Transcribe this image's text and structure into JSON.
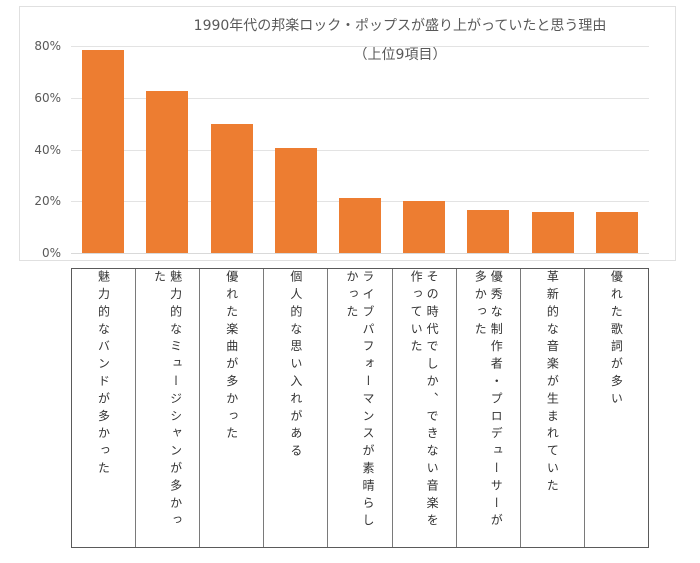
{
  "chart_data": {
    "type": "bar",
    "title": "1990年代の邦楽ロック・ポップスが盛り上がっていたと思う理由",
    "subtitle": "（上位9項目）",
    "xlabel": "",
    "ylabel": "",
    "ylim": [
      0,
      80
    ],
    "yticks": [
      "0%",
      "20%",
      "40%",
      "60%",
      "80%"
    ],
    "grid": true,
    "legend": null,
    "bar_color": "#ED7D31",
    "categories": [
      "魅力的なバンドが多かった",
      "魅力的なミュージシャンが多かった",
      "優れた楽曲が多かった",
      "個人的な思い入れがある",
      "ライブパフォーマンスが素晴らしかった",
      "その時代でしか、できない音楽を作っていた",
      "優秀な制作者・プロデューサーが多かった",
      "革新的な音楽が生まれていた",
      "優れた歌詞が多い"
    ],
    "values": [
      78.5,
      62.6,
      49.9,
      40.6,
      21.3,
      20.1,
      16.6,
      15.8,
      15.8
    ],
    "unit": "%"
  }
}
